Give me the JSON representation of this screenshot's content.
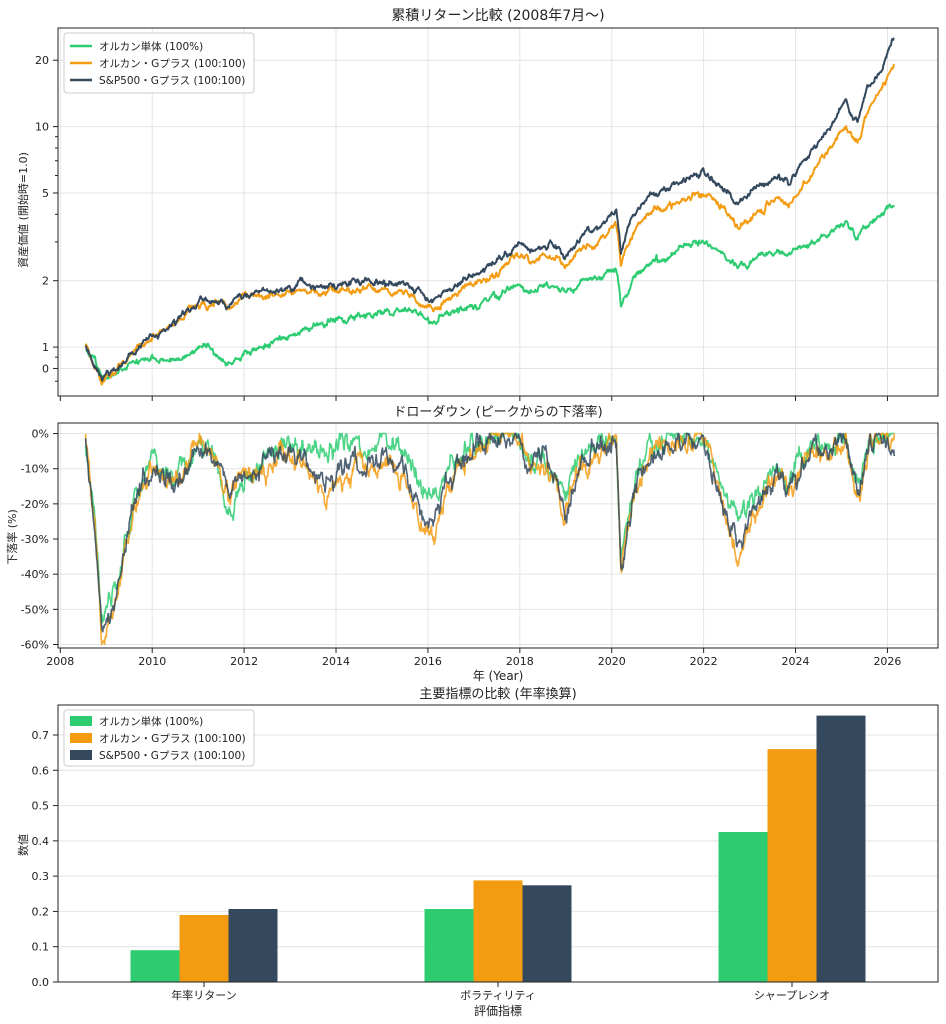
{
  "chart_data": [
    {
      "type": "line",
      "title": "累積リターン比較 (2008年7月〜)",
      "ylabel": "資産価値 (開始時=1.0)",
      "xlabel": "",
      "yscale": "log",
      "ylim": [
        0.6,
        28
      ],
      "xlim": [
        2007.95,
        2027.1
      ],
      "yticks": [
        {
          "value": 0.8,
          "label": "0"
        },
        {
          "value": 1,
          "label": "1"
        },
        {
          "value": 2,
          "label": "2"
        },
        {
          "value": 5,
          "label": "5"
        },
        {
          "value": 10,
          "label": "10"
        },
        {
          "value": 20,
          "label": "20"
        }
      ],
      "legend": "top-left",
      "grid": true,
      "series": [
        {
          "name": "オルカン単体 (100%)",
          "color": "#2ecc71",
          "x": [
            2008.55,
            2008.75,
            2008.9,
            2009.2,
            2009.6,
            2010.0,
            2010.5,
            2011.0,
            2011.3,
            2011.7,
            2011.9,
            2012.4,
            2012.8,
            2013.3,
            2013.7,
            2014.2,
            2014.6,
            2015.1,
            2015.5,
            2015.8,
            2016.1,
            2016.4,
            2016.9,
            2017.5,
            2018.0,
            2018.2,
            2018.5,
            2018.8,
            2018.98,
            2019.3,
            2019.7,
            2020.1,
            2020.2,
            2020.5,
            2020.9,
            2021.4,
            2021.98,
            2022.45,
            2022.75,
            2023.1,
            2023.6,
            2023.85,
            2024.3,
            2024.7,
            2025.1,
            2025.2,
            2025.35,
            2025.6,
            2025.95,
            2026.15
          ],
          "values": [
            1.0,
            0.86,
            0.72,
            0.74,
            0.86,
            0.88,
            0.85,
            1.0,
            0.97,
            0.85,
            0.92,
            1.0,
            1.1,
            1.2,
            1.27,
            1.35,
            1.38,
            1.45,
            1.5,
            1.4,
            1.3,
            1.42,
            1.5,
            1.72,
            1.92,
            1.82,
            1.9,
            1.88,
            1.75,
            1.95,
            2.05,
            2.2,
            1.5,
            2.05,
            2.4,
            2.75,
            3.0,
            2.6,
            2.3,
            2.5,
            2.75,
            2.6,
            3.0,
            3.3,
            3.6,
            3.4,
            3.1,
            3.6,
            4.1,
            4.4
          ]
        },
        {
          "name": "オルカン・Gプラス (100:100)",
          "color": "#f39c12",
          "x": [
            2008.55,
            2008.75,
            2008.9,
            2009.2,
            2009.6,
            2010.0,
            2010.5,
            2011.0,
            2011.3,
            2011.7,
            2011.9,
            2012.4,
            2012.8,
            2013.3,
            2013.7,
            2014.2,
            2014.6,
            2015.1,
            2015.5,
            2015.8,
            2016.1,
            2016.4,
            2016.9,
            2017.5,
            2018.0,
            2018.2,
            2018.5,
            2018.8,
            2018.98,
            2019.3,
            2019.7,
            2020.1,
            2020.2,
            2020.5,
            2020.9,
            2021.4,
            2021.98,
            2022.45,
            2022.75,
            2023.1,
            2023.6,
            2023.85,
            2024.3,
            2024.7,
            2025.1,
            2025.2,
            2025.35,
            2025.6,
            2025.95,
            2026.15
          ],
          "values": [
            1.0,
            0.82,
            0.7,
            0.76,
            0.95,
            1.1,
            1.28,
            1.6,
            1.55,
            1.5,
            1.65,
            1.7,
            1.75,
            1.85,
            1.78,
            1.8,
            1.85,
            1.82,
            1.75,
            1.6,
            1.45,
            1.65,
            1.85,
            2.15,
            2.6,
            2.45,
            2.55,
            2.5,
            2.2,
            2.7,
            3.0,
            3.6,
            2.3,
            3.4,
            4.2,
            4.5,
            5.1,
            4.2,
            3.4,
            4.0,
            4.8,
            4.3,
            5.8,
            7.5,
            10.5,
            9.3,
            8.5,
            12.0,
            16.0,
            20.0
          ]
        },
        {
          "name": "S&P500・Gプラス (100:100)",
          "color": "#34495e",
          "x": [
            2008.55,
            2008.75,
            2008.9,
            2009.2,
            2009.6,
            2010.0,
            2010.5,
            2011.0,
            2011.3,
            2011.7,
            2011.9,
            2012.4,
            2012.8,
            2013.3,
            2013.7,
            2014.2,
            2014.6,
            2015.1,
            2015.5,
            2015.8,
            2016.1,
            2016.4,
            2016.9,
            2017.5,
            2018.0,
            2018.2,
            2018.5,
            2018.8,
            2018.98,
            2019.3,
            2019.7,
            2020.1,
            2020.2,
            2020.5,
            2020.9,
            2021.4,
            2021.98,
            2022.45,
            2022.75,
            2023.1,
            2023.6,
            2023.85,
            2024.3,
            2024.7,
            2025.1,
            2025.2,
            2025.35,
            2025.6,
            2025.95,
            2026.15
          ],
          "values": [
            1.0,
            0.83,
            0.72,
            0.78,
            0.97,
            1.12,
            1.3,
            1.62,
            1.58,
            1.52,
            1.7,
            1.78,
            1.82,
            1.95,
            1.9,
            1.95,
            2.0,
            1.98,
            1.9,
            1.75,
            1.6,
            1.8,
            2.05,
            2.45,
            2.95,
            2.8,
            2.95,
            2.9,
            2.55,
            3.1,
            3.5,
            4.2,
            2.7,
            4.0,
            5.0,
            5.4,
            6.3,
            5.3,
            4.4,
            5.1,
            6.0,
            5.5,
            7.2,
            9.5,
            13.2,
            11.8,
            10.5,
            15.0,
            19.5,
            25.5
          ]
        }
      ]
    },
    {
      "type": "line",
      "title": "ドローダウン (ピークからの下落率)",
      "xlabel": "年 (Year)",
      "ylabel": "下落率 (%)",
      "ylim": [
        -61,
        3
      ],
      "xlim": [
        2007.95,
        2027.1
      ],
      "xticks": [
        2008,
        2010,
        2012,
        2014,
        2016,
        2018,
        2020,
        2022,
        2024,
        2026
      ],
      "yticks": [
        {
          "value": 0,
          "label": "0%"
        },
        {
          "value": -10,
          "label": "-10%"
        },
        {
          "value": -20,
          "label": "-20%"
        },
        {
          "value": -30,
          "label": "-30%"
        },
        {
          "value": -40,
          "label": "-40%"
        },
        {
          "value": -50,
          "label": "-50%"
        },
        {
          "value": -60,
          "label": "-60%"
        }
      ],
      "grid": true,
      "series": [
        {
          "name": "オルカン単体 (100%)",
          "color": "#2ecc71",
          "x": [
            2008.55,
            2008.75,
            2008.9,
            2009.2,
            2009.6,
            2010.0,
            2010.5,
            2011.0,
            2011.3,
            2011.7,
            2011.9,
            2012.4,
            2012.8,
            2013.3,
            2013.7,
            2014.2,
            2014.6,
            2015.1,
            2015.5,
            2015.8,
            2016.1,
            2016.4,
            2016.9,
            2017.5,
            2018.0,
            2018.2,
            2018.5,
            2018.8,
            2018.98,
            2019.3,
            2019.7,
            2020.1,
            2020.2,
            2020.5,
            2020.9,
            2021.4,
            2021.98,
            2022.45,
            2022.75,
            2023.1,
            2023.6,
            2023.85,
            2024.3,
            2024.7,
            2025.1,
            2025.2,
            2025.35,
            2025.6,
            2025.95,
            2026.15
          ],
          "values": [
            0,
            -22,
            -52,
            -45,
            -18,
            -6,
            -12,
            -2,
            -4,
            -20,
            -14,
            -6,
            -2,
            -3,
            -5,
            -3,
            -4,
            -2,
            -3,
            -10,
            -18,
            -9,
            -1,
            0,
            0,
            -8,
            -5,
            -10,
            -16,
            -5,
            -2,
            0,
            -36,
            -12,
            -2,
            0,
            0,
            -14,
            -24,
            -17,
            -8,
            -12,
            -3,
            -2,
            0,
            -6,
            -14,
            -2,
            0,
            0
          ]
        },
        {
          "name": "オルカン・Gプラス (100:100)",
          "color": "#f39c12",
          "x": [
            2008.55,
            2008.75,
            2008.9,
            2009.2,
            2009.6,
            2010.0,
            2010.5,
            2011.0,
            2011.3,
            2011.7,
            2011.9,
            2012.4,
            2012.8,
            2013.3,
            2013.7,
            2014.2,
            2014.6,
            2015.1,
            2015.5,
            2015.8,
            2016.1,
            2016.4,
            2016.9,
            2017.5,
            2018.0,
            2018.2,
            2018.5,
            2018.8,
            2018.98,
            2019.3,
            2019.7,
            2020.1,
            2020.2,
            2020.5,
            2020.9,
            2021.4,
            2021.98,
            2022.45,
            2022.75,
            2023.1,
            2023.6,
            2023.85,
            2024.3,
            2024.7,
            2025.1,
            2025.2,
            2025.35,
            2025.6,
            2025.95,
            2026.15
          ],
          "values": [
            0,
            -25,
            -57,
            -47,
            -20,
            -8,
            -14,
            -2,
            -5,
            -18,
            -12,
            -8,
            -4,
            -6,
            -18,
            -10,
            -8,
            -6,
            -10,
            -22,
            -30,
            -15,
            -5,
            0,
            0,
            -9,
            -6,
            -12,
            -24,
            -8,
            -3,
            0,
            -38,
            -14,
            -3,
            0,
            0,
            -20,
            -35,
            -22,
            -10,
            -16,
            -4,
            -3,
            0,
            -8,
            -17,
            -3,
            0,
            -2
          ]
        },
        {
          "name": "S&P500・Gプラス (100:100)",
          "color": "#34495e",
          "x": [
            2008.55,
            2008.75,
            2008.9,
            2009.2,
            2009.6,
            2010.0,
            2010.5,
            2011.0,
            2011.3,
            2011.7,
            2011.9,
            2012.4,
            2012.8,
            2013.3,
            2013.7,
            2014.2,
            2014.6,
            2015.1,
            2015.5,
            2015.8,
            2016.1,
            2016.4,
            2016.9,
            2017.5,
            2018.0,
            2018.2,
            2018.5,
            2018.8,
            2018.98,
            2019.3,
            2019.7,
            2020.1,
            2020.2,
            2020.5,
            2020.9,
            2021.4,
            2021.98,
            2022.45,
            2022.75,
            2023.1,
            2023.6,
            2023.85,
            2024.3,
            2024.7,
            2025.1,
            2025.2,
            2025.35,
            2025.6,
            2025.95,
            2026.15
          ],
          "values": [
            0,
            -24,
            -54,
            -44,
            -18,
            -7,
            -13,
            -2,
            -4,
            -17,
            -11,
            -7,
            -3,
            -5,
            -15,
            -8,
            -7,
            -5,
            -8,
            -19,
            -26,
            -13,
            -4,
            0,
            0,
            -8,
            -5,
            -11,
            -21,
            -7,
            -3,
            0,
            -37,
            -13,
            -3,
            0,
            0,
            -18,
            -33,
            -20,
            -9,
            -14,
            -4,
            -3,
            0,
            -7,
            -15,
            -3,
            0,
            -2
          ]
        }
      ]
    },
    {
      "type": "bar",
      "title": "主要指標の比較 (年率換算)",
      "xlabel": "評価指標",
      "ylabel": "数値",
      "ylim": [
        0,
        0.785
      ],
      "yticks": [
        0.0,
        0.1,
        0.2,
        0.3,
        0.4,
        0.5,
        0.6,
        0.7
      ],
      "legend": "top-left",
      "grid": true,
      "categories": [
        "年率リターン",
        "ボラティリティ",
        "シャープレシオ"
      ],
      "series": [
        {
          "name": "オルカン単体 (100%)",
          "color": "#2ecc71",
          "values": [
            0.09,
            0.207,
            0.425
          ]
        },
        {
          "name": "オルカン・Gプラス (100:100)",
          "color": "#f39c12",
          "values": [
            0.19,
            0.288,
            0.66
          ]
        },
        {
          "name": "S&P500・Gプラス (100:100)",
          "color": "#34495e",
          "values": [
            0.207,
            0.274,
            0.755
          ]
        }
      ]
    }
  ]
}
